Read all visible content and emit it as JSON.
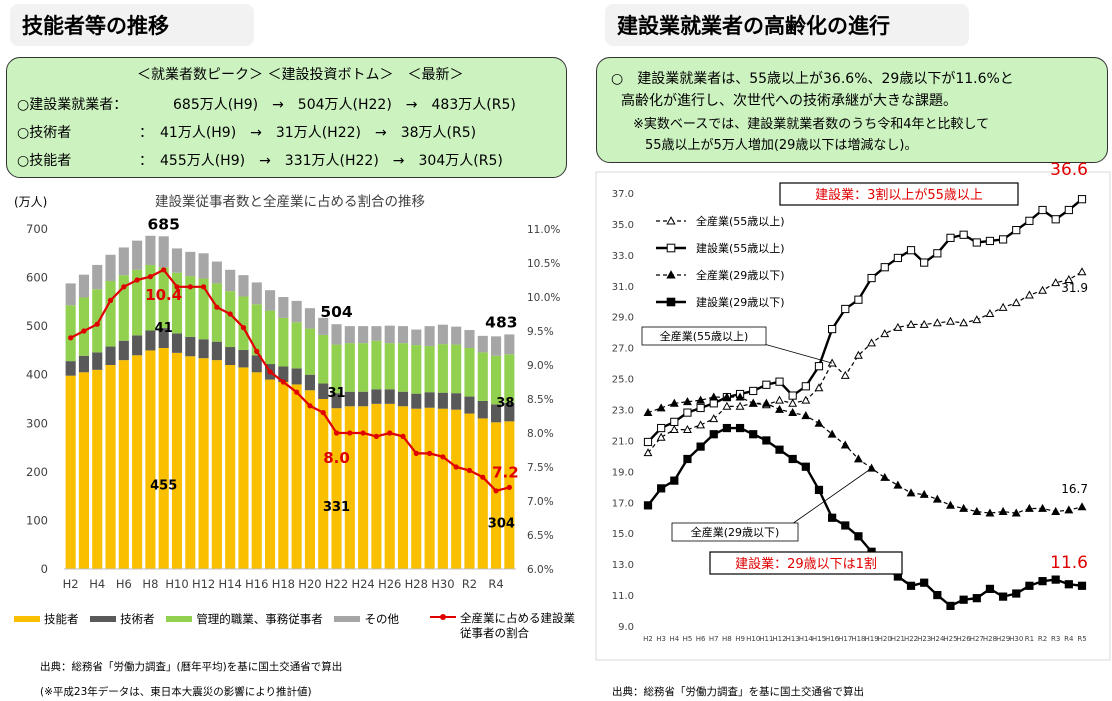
{
  "left": {
    "section_title": "技能者等の推移",
    "summary": {
      "header": "＜就業者数ピーク＞ ＜建設投資ボトム＞　＜最新＞",
      "rows": [
        {
          "label": "○建設業就業者：",
          "text": "685万人(H9)　→　504万人(H22)　→　483万人(R5)"
        },
        {
          "label": "○技術者",
          "text": "：　41万人(H9)　→　31万人(H22)　→　38万人(R5)"
        },
        {
          "label": "○技能者",
          "text": "：　455万人(H9)　→　331万人(H22)　→　304万人(R5)"
        }
      ]
    },
    "source1": "出典：総務省「労働力調査」(暦年平均)を基に国土交通省で算出",
    "source2": "(※平成23年データは、東日本大震災の影響により推計値)"
  },
  "right": {
    "section_title": "建設業就業者の高齢化の進行",
    "summary_lines": [
      "○　建設業就業者は、55歳以上が36.6%、29歳以下が11.6%と",
      "高齢化が進行し、次世代への技術承継が大きな課題。",
      "※実数ベースでは、建設業就業者数のうち令和4年と比較して",
      "55歳以上が5万人増加(29歳以下は増減なし)。"
    ],
    "source": "出典：総務省「労働力調査」を基に国土交通省で算出"
  },
  "chart_data": [
    {
      "type": "bar",
      "title": "建設業従事者数と全産業に占める割合の推移",
      "ylabel": "(万人)",
      "ylim": [
        0,
        700
      ],
      "y2lim": [
        6.0,
        11.0
      ],
      "stacked": true,
      "categories": [
        "H2",
        "H3",
        "H4",
        "H5",
        "H6",
        "H7",
        "H8",
        "H9",
        "H10",
        "H11",
        "H12",
        "H13",
        "H14",
        "H15",
        "H16",
        "H17",
        "H18",
        "H19",
        "H20",
        "H21",
        "H22",
        "H23",
        "H24",
        "H25",
        "H26",
        "H27",
        "H28",
        "H29",
        "H30",
        "R1",
        "R2",
        "R3",
        "R4",
        "R5"
      ],
      "xtick_labels": [
        "H2",
        "H4",
        "H6",
        "H8",
        "H10",
        "H12",
        "H14",
        "H16",
        "H18",
        "H20",
        "H22",
        "H24",
        "H26",
        "H28",
        "H30",
        "R2",
        "R4"
      ],
      "yticks": [
        "0",
        "100",
        "200",
        "300",
        "400",
        "500",
        "600",
        "700"
      ],
      "y2ticks": [
        "6.0%",
        "6.5%",
        "7.0%",
        "7.5%",
        "8.0%",
        "8.5%",
        "9.0%",
        "9.5%",
        "10.0%",
        "10.5%",
        "11.0%"
      ],
      "legend_placement": "bottom",
      "colors": {
        "skilled": "#fac000",
        "tech": "#595959",
        "admin": "#92d050",
        "other": "#a6a6a6",
        "ratio": "#e00000"
      },
      "series": [
        {
          "key": "skilled",
          "name": "技能者",
          "values": [
            398,
            405,
            410,
            420,
            430,
            440,
            450,
            455,
            445,
            438,
            434,
            430,
            420,
            415,
            405,
            390,
            385,
            380,
            368,
            350,
            331,
            335,
            335,
            340,
            340,
            335,
            330,
            332,
            330,
            328,
            320,
            310,
            302,
            304
          ]
        },
        {
          "key": "tech",
          "name": "技術者",
          "values": [
            30,
            34,
            36,
            38,
            40,
            41,
            41,
            41,
            40,
            40,
            39,
            38,
            37,
            36,
            35,
            32,
            32,
            33,
            32,
            32,
            31,
            30,
            30,
            30,
            30,
            30,
            31,
            32,
            33,
            34,
            35,
            36,
            37,
            38
          ]
        },
        {
          "key": "admin",
          "name": "管理的職業、事務従事者",
          "values": [
            115,
            120,
            130,
            135,
            135,
            135,
            135,
            125,
            125,
            125,
            125,
            120,
            115,
            110,
            105,
            110,
            100,
            95,
            95,
            100,
            100,
            100,
            100,
            100,
            95,
            100,
            100,
            95,
            100,
            100,
            100,
            100,
            100,
            100
          ]
        },
        {
          "key": "other",
          "name": "その他",
          "values": [
            45,
            47,
            50,
            54,
            57,
            60,
            60,
            64,
            50,
            50,
            52,
            45,
            44,
            44,
            45,
            42,
            43,
            44,
            42,
            35,
            42,
            35,
            35,
            30,
            36,
            35,
            32,
            41,
            40,
            37,
            37,
            34,
            40,
            41
          ]
        },
        {
          "key": "ratio",
          "name": "全産業に占める建設業従事者の割合",
          "axis": "right",
          "values": [
            9.4,
            9.5,
            9.6,
            9.95,
            10.15,
            10.25,
            10.3,
            10.4,
            10.15,
            10.15,
            10.15,
            9.85,
            9.75,
            9.55,
            9.2,
            8.9,
            8.75,
            8.6,
            8.4,
            8.3,
            8.0,
            8.0,
            8.0,
            7.95,
            8.0,
            7.95,
            7.7,
            7.7,
            7.65,
            7.5,
            7.45,
            7.35,
            7.15,
            7.2
          ]
        }
      ],
      "annotations": [
        {
          "category": "H9",
          "series": "total",
          "text": "685"
        },
        {
          "category": "H9",
          "series": "ratio",
          "text": "10.4"
        },
        {
          "category": "H9",
          "series": "tech",
          "text": "41"
        },
        {
          "category": "H9",
          "series": "skilled",
          "text": "455"
        },
        {
          "category": "H22",
          "series": "total",
          "text": "504"
        },
        {
          "category": "H22",
          "series": "tech",
          "text": "31"
        },
        {
          "category": "H22",
          "series": "ratio",
          "text": "8.0"
        },
        {
          "category": "H22",
          "series": "skilled",
          "text": "331"
        },
        {
          "category": "R5",
          "series": "total",
          "text": "483"
        },
        {
          "category": "R5",
          "series": "tech",
          "text": "38"
        },
        {
          "category": "R5",
          "series": "ratio",
          "text": "7.2"
        },
        {
          "category": "R5",
          "series": "skilled",
          "text": "304"
        }
      ]
    },
    {
      "type": "line",
      "ylim": [
        9.0,
        37.0
      ],
      "yticks": [
        "37.0",
        "35.0",
        "33.0",
        "31.0",
        "29.0",
        "27.0",
        "25.0",
        "23.0",
        "21.0",
        "19.0",
        "17.0",
        "15.0",
        "13.0",
        "11.0",
        "9.0"
      ],
      "x": [
        "H2",
        "H3",
        "H4",
        "H5",
        "H6",
        "H7",
        "H8",
        "H9",
        "H10",
        "H11",
        "H12",
        "H13",
        "H14",
        "H15",
        "H16",
        "H17",
        "H18",
        "H19",
        "H20",
        "H21",
        "H22",
        "H23",
        "H24",
        "H25",
        "H26",
        "H27",
        "H28",
        "H29",
        "H30",
        "R1",
        "R2",
        "R3",
        "R4",
        "R5"
      ],
      "legend_placement": "top-left",
      "series": [
        {
          "name": "全産業(55歳以上)",
          "style": "dashed-open-triangle",
          "values": [
            20.2,
            21.2,
            21.7,
            21.7,
            22.0,
            22.4,
            23.2,
            23.2,
            23.4,
            23.3,
            23.6,
            23.4,
            23.6,
            24.4,
            26.0,
            25.2,
            26.5,
            27.3,
            27.9,
            28.3,
            28.5,
            28.5,
            28.6,
            28.7,
            28.6,
            28.8,
            29.2,
            29.6,
            29.9,
            30.4,
            30.7,
            31.2,
            31.4,
            31.9
          ]
        },
        {
          "name": "建設業(55歳以上)",
          "style": "solid-open-square",
          "values": [
            20.9,
            21.8,
            22.2,
            22.8,
            23.1,
            23.4,
            23.8,
            24.0,
            24.2,
            24.6,
            24.8,
            23.9,
            24.5,
            25.8,
            28.2,
            29.5,
            30.1,
            31.5,
            32.2,
            32.8,
            33.3,
            32.5,
            33.1,
            34.1,
            34.3,
            33.8,
            33.9,
            34.0,
            34.6,
            35.2,
            35.9,
            35.3,
            35.9,
            36.6
          ]
        },
        {
          "name": "全産業(29歳以下)",
          "style": "dashed-filled-triangle",
          "values": [
            22.8,
            23.1,
            23.4,
            23.5,
            23.6,
            23.8,
            23.8,
            23.8,
            23.4,
            23.4,
            23.0,
            22.8,
            22.6,
            22.1,
            21.4,
            20.7,
            19.8,
            19.2,
            18.6,
            18.1,
            17.6,
            17.5,
            17.2,
            16.8,
            16.6,
            16.4,
            16.3,
            16.4,
            16.3,
            16.6,
            16.6,
            16.4,
            16.5,
            16.7
          ]
        },
        {
          "name": "建設業(29歳以下)",
          "style": "solid-filled-square",
          "values": [
            16.8,
            17.9,
            18.4,
            19.8,
            20.6,
            21.4,
            21.8,
            21.8,
            21.4,
            21.0,
            20.4,
            19.8,
            19.3,
            17.8,
            16.0,
            15.5,
            14.8,
            13.8,
            12.8,
            12.2,
            11.6,
            11.8,
            11.0,
            10.3,
            10.7,
            10.8,
            11.4,
            10.9,
            11.1,
            11.6,
            11.9,
            12.0,
            11.7,
            11.6
          ]
        }
      ],
      "callouts": [
        "建設業：3割以上が55歳以上",
        "建設業：29歳以下は1割"
      ],
      "pointer_labels": [
        "全産業(55歳以上)",
        "全産業(29歳以下)"
      ],
      "end_labels": [
        "36.6",
        "31.9",
        "16.7",
        "11.6"
      ],
      "end_label_colors": [
        "#e00000",
        "#000000",
        "#000000",
        "#e00000"
      ]
    }
  ]
}
